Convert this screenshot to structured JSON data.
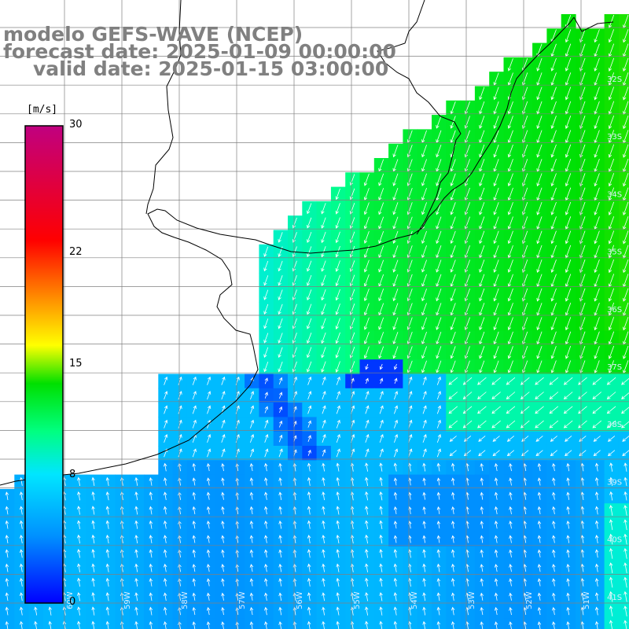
{
  "title": {
    "line1": "modelo GEFS-WAVE (NCEP)",
    "line2": "forecast date: 2025-01-09 00:00:00",
    "line3": "valid date: 2025-01-15 03:00:00"
  },
  "colorbar": {
    "units": "[m/s]",
    "ticks": [
      {
        "value": 30,
        "label": "30"
      },
      {
        "value": 22,
        "label": "22"
      },
      {
        "value": 15,
        "label": "15"
      },
      {
        "value": 8,
        "label": "8"
      },
      {
        "value": 0,
        "label": "0"
      }
    ],
    "min": 0,
    "max": 30,
    "colors": [
      "#0000ff",
      "#0090ff",
      "#00e6ff",
      "#00ff80",
      "#00e000",
      "#ffff00",
      "#ff8c00",
      "#ff0000",
      "#c00080"
    ]
  },
  "map": {
    "variable": "wind speed",
    "lat_labels": [
      "32S",
      "33S",
      "34S",
      "35S",
      "36S",
      "37S",
      "38S",
      "39S",
      "40S",
      "41S"
    ],
    "lon_labels": [
      "60W",
      "59W",
      "58W",
      "57W",
      "56W",
      "55W",
      "54W",
      "53W",
      "52W",
      "51W"
    ],
    "colors": {
      "land": "#ffffff",
      "coast": "#000000",
      "grid": "#808080",
      "arrow": "#ffffff"
    }
  }
}
